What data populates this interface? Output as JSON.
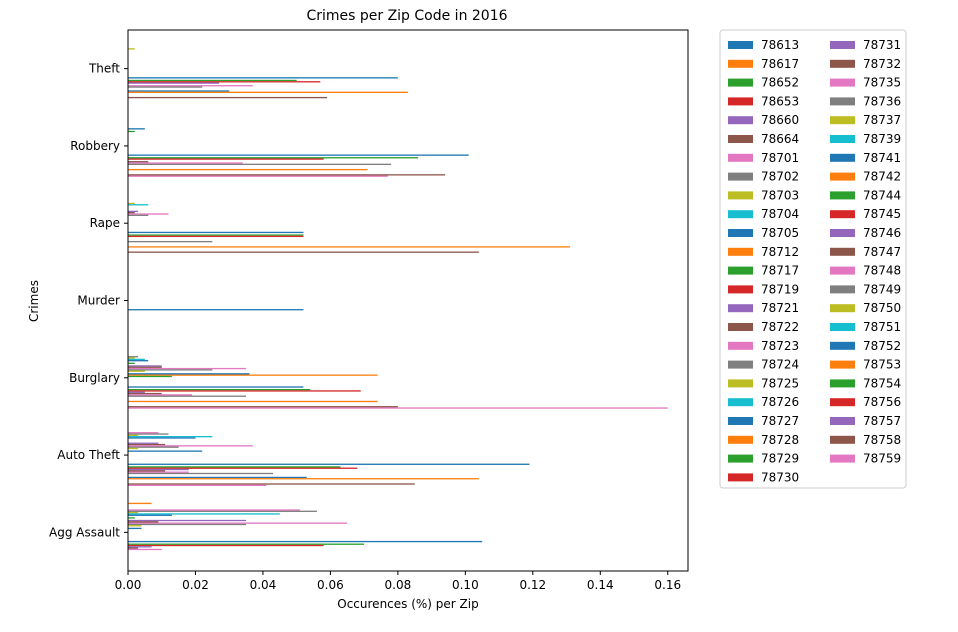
{
  "chart_data": {
    "type": "bar",
    "orientation": "horizontal",
    "title": "Crimes per Zip Code in 2016",
    "xlabel": "Occurences (%) per Zip",
    "ylabel": "Crimes",
    "xlim": [
      0.0,
      0.166
    ],
    "xticks": [
      "0.00",
      "0.02",
      "0.04",
      "0.06",
      "0.08",
      "0.10",
      "0.12",
      "0.14",
      "0.16"
    ],
    "categories": [
      "Agg Assault",
      "Auto Theft",
      "Burglary",
      "Murder",
      "Rape",
      "Robbery",
      "Theft"
    ],
    "grid": false,
    "legend_placement": "outside-right",
    "legend_columns": 2,
    "colors": [
      "#1f77b4",
      "#ff7f0e",
      "#2ca02c",
      "#d62728",
      "#9467bd",
      "#8c564b",
      "#e377c2",
      "#7f7f7f",
      "#bcbd22",
      "#17becf"
    ],
    "series": [
      {
        "name": "78613",
        "values": [
          0.0,
          0.0,
          0.0,
          0.0,
          0.0,
          0.0,
          0.0
        ]
      },
      {
        "name": "78617",
        "values": [
          0.007,
          0.0,
          0.0,
          0.0,
          0.0,
          0.0,
          0.0
        ]
      },
      {
        "name": "78652",
        "values": [
          0.0,
          0.0,
          0.0,
          0.0,
          0.0,
          0.0,
          0.0
        ]
      },
      {
        "name": "78653",
        "values": [
          0.0,
          0.0,
          0.0,
          0.0,
          0.0,
          0.0,
          0.0
        ]
      },
      {
        "name": "78660",
        "values": [
          0.0,
          0.0,
          0.0,
          0.0,
          0.0,
          0.0,
          0.0
        ]
      },
      {
        "name": "78664",
        "values": [
          0.0,
          0.0,
          0.0,
          0.0,
          0.0,
          0.0,
          0.0
        ]
      },
      {
        "name": "78701",
        "values": [
          0.051,
          0.009,
          0.0,
          0.0,
          0.0,
          0.0,
          0.0
        ]
      },
      {
        "name": "78702",
        "values": [
          0.056,
          0.012,
          0.003,
          0.0,
          0.0,
          0.0,
          0.0
        ]
      },
      {
        "name": "78703",
        "values": [
          0.003,
          0.003,
          0.002,
          0.0,
          0.002,
          0.0,
          0.002
        ]
      },
      {
        "name": "78704",
        "values": [
          0.045,
          0.025,
          0.005,
          0.0,
          0.006,
          0.0,
          0.0
        ]
      },
      {
        "name": "78705",
        "values": [
          0.013,
          0.02,
          0.006,
          0.0,
          0.0,
          0.005,
          0.0
        ]
      },
      {
        "name": "78712",
        "values": [
          0.0,
          0.0,
          0.0,
          0.0,
          0.0,
          0.0,
          0.0
        ]
      },
      {
        "name": "78717",
        "values": [
          0.002,
          0.0,
          0.002,
          0.0,
          0.0,
          0.002,
          0.0
        ]
      },
      {
        "name": "78719",
        "values": [
          0.0,
          0.0,
          0.0,
          0.0,
          0.0,
          0.0,
          0.0
        ]
      },
      {
        "name": "78721",
        "values": [
          0.035,
          0.009,
          0.01,
          0.0,
          0.003,
          0.0,
          0.0
        ]
      },
      {
        "name": "78722",
        "values": [
          0.009,
          0.011,
          0.01,
          0.0,
          0.002,
          0.0,
          0.0
        ]
      },
      {
        "name": "78723",
        "values": [
          0.065,
          0.037,
          0.035,
          0.0,
          0.012,
          0.0,
          0.0
        ]
      },
      {
        "name": "78724",
        "values": [
          0.035,
          0.015,
          0.025,
          0.0,
          0.006,
          0.0,
          0.0
        ]
      },
      {
        "name": "78725",
        "values": [
          0.004,
          0.003,
          0.005,
          0.0,
          0.0,
          0.0,
          0.0
        ]
      },
      {
        "name": "78726",
        "values": [
          0.0,
          0.0,
          0.0,
          0.0,
          0.0,
          0.0,
          0.0
        ]
      },
      {
        "name": "78727",
        "values": [
          0.004,
          0.022,
          0.036,
          0.0,
          0.0,
          0.0,
          0.0
        ]
      },
      {
        "name": "78728",
        "values": [
          0.0,
          0.0,
          0.074,
          0.0,
          0.0,
          0.0,
          0.0
        ]
      },
      {
        "name": "78729",
        "values": [
          0.0,
          0.0,
          0.013,
          0.0,
          0.0,
          0.0,
          0.0
        ]
      },
      {
        "name": "78730",
        "values": [
          0.0,
          0.0,
          0.0,
          0.0,
          0.0,
          0.0,
          0.0
        ]
      },
      {
        "name": "78731",
        "values": [
          0.0,
          0.0,
          0.0,
          0.0,
          0.0,
          0.0,
          0.0
        ]
      },
      {
        "name": "78732",
        "values": [
          0.0,
          0.0,
          0.0,
          0.0,
          0.0,
          0.0,
          0.0
        ]
      },
      {
        "name": "78735",
        "values": [
          0.0,
          0.0,
          0.0,
          0.0,
          0.0,
          0.0,
          0.0
        ]
      },
      {
        "name": "78736",
        "values": [
          0.0,
          0.0,
          0.0,
          0.0,
          0.0,
          0.0,
          0.0
        ]
      },
      {
        "name": "78737",
        "values": [
          0.0,
          0.0,
          0.0,
          0.0,
          0.0,
          0.0,
          0.0
        ]
      },
      {
        "name": "78739",
        "values": [
          0.0,
          0.0,
          0.0,
          0.0,
          0.0,
          0.0,
          0.0
        ]
      },
      {
        "name": "78741",
        "values": [
          0.105,
          0.119,
          0.052,
          0.052,
          0.052,
          0.101,
          0.08
        ]
      },
      {
        "name": "78742",
        "values": [
          0.0,
          0.0,
          0.0,
          0.0,
          0.0,
          0.0,
          0.0
        ]
      },
      {
        "name": "78744",
        "values": [
          0.07,
          0.063,
          0.054,
          0.0,
          0.052,
          0.086,
          0.05
        ]
      },
      {
        "name": "78745",
        "values": [
          0.058,
          0.068,
          0.069,
          0.0,
          0.052,
          0.058,
          0.057
        ]
      },
      {
        "name": "78746",
        "values": [
          0.007,
          0.018,
          0.005,
          0.0,
          0.0,
          0.0,
          0.027
        ]
      },
      {
        "name": "78747",
        "values": [
          0.003,
          0.011,
          0.01,
          0.0,
          0.0,
          0.006,
          0.0
        ]
      },
      {
        "name": "78748",
        "values": [
          0.01,
          0.018,
          0.019,
          0.0,
          0.0,
          0.034,
          0.037
        ]
      },
      {
        "name": "78749",
        "values": [
          0.0,
          0.043,
          0.035,
          0.0,
          0.025,
          0.078,
          0.022
        ]
      },
      {
        "name": "78750",
        "values": [
          0.0,
          0.0,
          0.0,
          0.0,
          0.0,
          0.0,
          0.0
        ]
      },
      {
        "name": "78751",
        "values": [
          0.0,
          0.0,
          0.0,
          0.0,
          0.0,
          0.0,
          0.0
        ]
      },
      {
        "name": "78752",
        "values": [
          0.0,
          0.053,
          0.0,
          0.0,
          0.0,
          0.0,
          0.03
        ]
      },
      {
        "name": "78753",
        "values": [
          0.0,
          0.104,
          0.074,
          0.0,
          0.131,
          0.071,
          0.083
        ]
      },
      {
        "name": "78754",
        "values": [
          0.0,
          0.0,
          0.0,
          0.0,
          0.0,
          0.0,
          0.0
        ]
      },
      {
        "name": "78756",
        "values": [
          0.0,
          0.0,
          0.0,
          0.0,
          0.0,
          0.0,
          0.0
        ]
      },
      {
        "name": "78757",
        "values": [
          0.0,
          0.0,
          0.0,
          0.0,
          0.0,
          0.0,
          0.0
        ]
      },
      {
        "name": "78758",
        "values": [
          0.0,
          0.085,
          0.08,
          0.0,
          0.104,
          0.094,
          0.059
        ]
      },
      {
        "name": "78759",
        "values": [
          0.0,
          0.041,
          0.16,
          0.0,
          0.0,
          0.077,
          0.0
        ]
      }
    ]
  }
}
